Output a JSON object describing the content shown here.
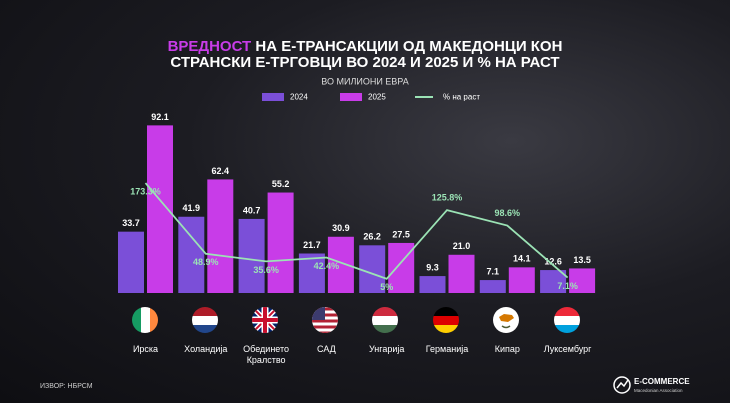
{
  "chart_data": {
    "type": "bar",
    "title": [
      "ВРЕДНОСТ",
      "НА Е-ТРАНСАКЦИИ ОД МАКЕДОНЦИ КОН",
      "СТРАНСКИ Е-ТРГОВЦИ ВО 2024 И 2025 И % НА РАСТ"
    ],
    "subtitle": "ВО МИЛИОНИ ЕВРА",
    "categories": [
      "Ирска",
      "Холандија",
      "Обединето Кралство",
      "САД",
      "Унгарија",
      "Германија",
      "Кипар",
      "Луксембург"
    ],
    "series": [
      {
        "name": "2024",
        "color": "#7b4fd8",
        "values": [
          33.7,
          41.9,
          40.7,
          21.7,
          26.2,
          9.3,
          7.1,
          12.6
        ]
      },
      {
        "name": "2025",
        "color": "#c83ce8",
        "values": [
          92.1,
          62.4,
          55.2,
          30.9,
          27.5,
          21.0,
          14.1,
          13.5
        ],
        "value_labels": [
          "92.1",
          "62.4",
          "55.2",
          "30.9",
          "27.5",
          "21.0",
          "14.1",
          "13.5"
        ]
      },
      {
        "name": "% на раст",
        "type": "line",
        "axis": "y2",
        "color": "#9be3b5",
        "values": [
          173.3,
          48.9,
          35.6,
          42.4,
          5,
          125.8,
          98.6,
          7.1
        ],
        "value_labels": [
          "173.3%",
          "48.9%",
          "35.6%",
          "42.4%",
          "5%",
          "125.8%",
          "98.6%",
          "7.1%"
        ]
      }
    ],
    "ylim": [
      0,
      100
    ],
    "y2lim": [
      -20,
      300
    ],
    "source": "ИЗВОР: НБРСМ",
    "brand": "E-COMMERCE",
    "brand_subtitle": "Macedonian Association"
  }
}
